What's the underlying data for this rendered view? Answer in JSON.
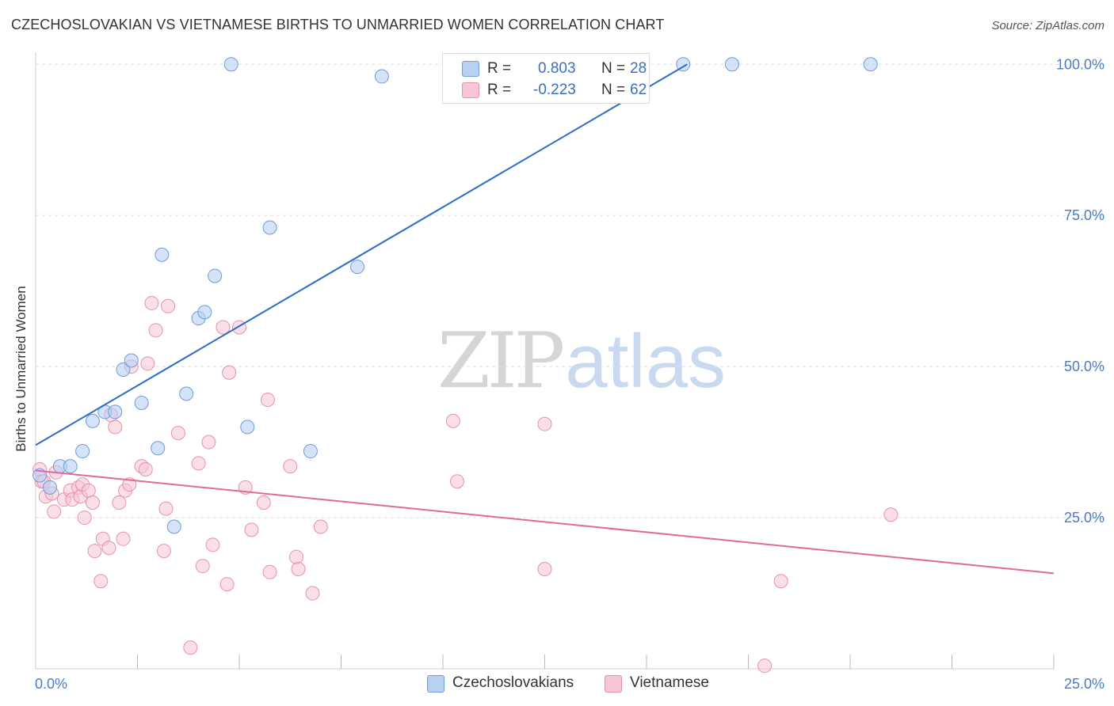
{
  "header": {
    "title": "CZECHOSLOVAKIAN VS VIETNAMESE BIRTHS TO UNMARRIED WOMEN CORRELATION CHART",
    "source": "Source: ZipAtlas.com"
  },
  "legend": {
    "series1": {
      "r_label": "R =",
      "r_value": "0.803",
      "n_label": "N =",
      "n_value": "28"
    },
    "series2": {
      "r_label": "R =",
      "r_value": "-0.223",
      "n_label": "N =",
      "n_value": "62"
    }
  },
  "bottom_legend": {
    "series1": "Czechoslovakians",
    "series2": "Vietnamese"
  },
  "watermark": {
    "zip": "ZIP",
    "atlas": "atlas"
  },
  "colors": {
    "series1_fill": "#b8d1f3",
    "series1_stroke": "#6f9bd8",
    "series1_line": "#2b6cc4",
    "series2_fill": "#f7c5d4",
    "series2_stroke": "#e891ad",
    "series2_line": "#e2699a",
    "tick_text": "#4a7cc7",
    "grid": "#dddddd"
  },
  "chart_data": {
    "type": "scatter",
    "title": "CZECHOSLOVAKIAN VS VIETNAMESE BIRTHS TO UNMARRIED WOMEN CORRELATION CHART",
    "xlabel": "",
    "ylabel": "Births to Unmarried Women",
    "xlim": [
      0,
      25
    ],
    "ylim": [
      0,
      102
    ],
    "x_tick_labels": [
      {
        "value": 0,
        "label": "0.0%"
      },
      {
        "value": 25,
        "label": "25.0%"
      }
    ],
    "y_tick_labels": [
      {
        "value": 25,
        "label": "25.0%"
      },
      {
        "value": 50,
        "label": "50.0%"
      },
      {
        "value": 75,
        "label": "75.0%"
      },
      {
        "value": 100,
        "label": "100.0%"
      }
    ],
    "grid": true,
    "legend_position": "top-center",
    "series": [
      {
        "name": "Czechoslovakians",
        "color": "#6f9bd8",
        "trend": {
          "x": [
            0,
            16.0
          ],
          "y": [
            37.0,
            100.0
          ]
        },
        "points": [
          [
            0.1,
            32.0
          ],
          [
            0.35,
            30.0
          ],
          [
            0.6,
            33.5
          ],
          [
            0.85,
            33.5
          ],
          [
            1.15,
            36.0
          ],
          [
            1.4,
            41.0
          ],
          [
            1.7,
            42.5
          ],
          [
            1.95,
            42.5
          ],
          [
            2.15,
            49.5
          ],
          [
            2.35,
            51.0
          ],
          [
            2.6,
            44.0
          ],
          [
            3.0,
            36.5
          ],
          [
            3.1,
            68.5
          ],
          [
            3.4,
            23.5
          ],
          [
            3.7,
            45.5
          ],
          [
            4.0,
            58.0
          ],
          [
            4.15,
            59.0
          ],
          [
            4.4,
            65.0
          ],
          [
            4.8,
            100.0
          ],
          [
            5.2,
            40.0
          ],
          [
            5.75,
            73.0
          ],
          [
            6.75,
            36.0
          ],
          [
            7.9,
            66.5
          ],
          [
            8.5,
            98.0
          ],
          [
            11.5,
            100.0
          ],
          [
            15.9,
            100.0
          ],
          [
            17.1,
            100.0
          ],
          [
            20.5,
            100.0
          ]
        ]
      },
      {
        "name": "Vietnamese",
        "color": "#e891ad",
        "trend": {
          "x": [
            0,
            25
          ],
          "y": [
            32.8,
            15.8
          ]
        },
        "points": [
          [
            0.1,
            33.0
          ],
          [
            0.15,
            31.0
          ],
          [
            0.25,
            28.5
          ],
          [
            0.4,
            29.0
          ],
          [
            0.45,
            26.0
          ],
          [
            0.5,
            32.5
          ],
          [
            0.7,
            28.0
          ],
          [
            0.85,
            29.5
          ],
          [
            0.9,
            28.0
          ],
          [
            1.05,
            30.0
          ],
          [
            1.1,
            28.5
          ],
          [
            1.15,
            30.5
          ],
          [
            1.2,
            25.0
          ],
          [
            1.3,
            29.5
          ],
          [
            1.4,
            27.5
          ],
          [
            1.45,
            19.5
          ],
          [
            1.6,
            14.5
          ],
          [
            1.65,
            21.5
          ],
          [
            1.8,
            20.0
          ],
          [
            1.85,
            42.0
          ],
          [
            1.95,
            40.0
          ],
          [
            2.05,
            27.5
          ],
          [
            2.15,
            21.5
          ],
          [
            2.2,
            29.5
          ],
          [
            2.3,
            30.5
          ],
          [
            2.35,
            50.0
          ],
          [
            2.6,
            33.5
          ],
          [
            2.7,
            33.0
          ],
          [
            2.75,
            50.5
          ],
          [
            2.85,
            60.5
          ],
          [
            2.95,
            56.0
          ],
          [
            3.15,
            19.5
          ],
          [
            3.2,
            26.5
          ],
          [
            3.25,
            60.0
          ],
          [
            3.5,
            39.0
          ],
          [
            3.8,
            3.5
          ],
          [
            4.0,
            34.0
          ],
          [
            4.1,
            17.0
          ],
          [
            4.25,
            37.5
          ],
          [
            4.35,
            20.5
          ],
          [
            4.6,
            56.5
          ],
          [
            4.7,
            14.0
          ],
          [
            4.75,
            49.0
          ],
          [
            5.0,
            56.5
          ],
          [
            5.15,
            30.0
          ],
          [
            5.3,
            23.0
          ],
          [
            5.6,
            27.5
          ],
          [
            5.7,
            44.5
          ],
          [
            5.75,
            16.0
          ],
          [
            6.25,
            33.5
          ],
          [
            6.4,
            18.5
          ],
          [
            6.45,
            16.5
          ],
          [
            6.8,
            12.5
          ],
          [
            7.0,
            23.5
          ],
          [
            10.25,
            41.0
          ],
          [
            10.35,
            31.0
          ],
          [
            12.5,
            40.5
          ],
          [
            12.5,
            16.5
          ],
          [
            17.9,
            0.5
          ],
          [
            18.3,
            14.5
          ],
          [
            21.0,
            25.5
          ],
          [
            0.2,
            31.0
          ]
        ]
      }
    ]
  }
}
